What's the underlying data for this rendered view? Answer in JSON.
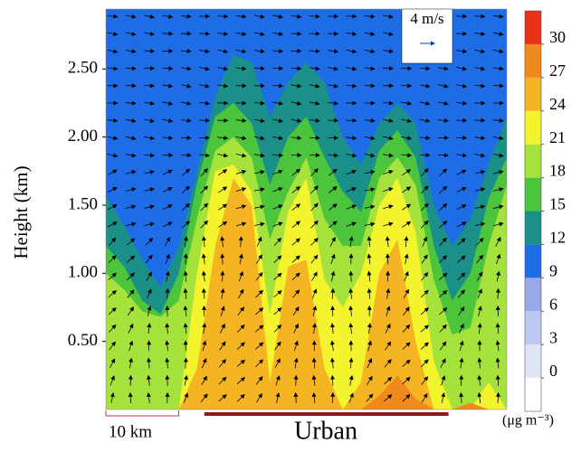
{
  "chart_data": {
    "type": "contour",
    "ylabel": "Height (km)",
    "xlim": [
      0,
      55
    ],
    "ylim": [
      0,
      2.94
    ],
    "yticks": [
      {
        "value": 0.5,
        "label": "0.50"
      },
      {
        "value": 1.0,
        "label": "1.00"
      },
      {
        "value": 1.5,
        "label": "1.50"
      },
      {
        "value": 2.0,
        "label": "2.00"
      },
      {
        "value": 2.5,
        "label": "2.50"
      }
    ],
    "background_color": "#1f6de6",
    "x": [
      0,
      2.5,
      5,
      7.5,
      10,
      12.5,
      15,
      17.5,
      20,
      22.5,
      25,
      27.5,
      30,
      32.5,
      35,
      37.5,
      40,
      42.5,
      45,
      47.5,
      50,
      52.5,
      55
    ],
    "series": [
      {
        "color": "#1a9088",
        "values": [
          1.57,
          1.35,
          1.1,
          0.9,
          1.2,
          1.75,
          2.3,
          2.6,
          2.55,
          2.15,
          2.4,
          2.55,
          2.4,
          2.0,
          1.8,
          2.1,
          2.25,
          2.1,
          1.5,
          1.2,
          1.4,
          1.8,
          2.15
        ]
      },
      {
        "color": "#4cc43c",
        "values": [
          1.2,
          1.05,
          0.8,
          0.7,
          1.0,
          1.66,
          2.15,
          2.25,
          2.1,
          1.65,
          2.0,
          2.15,
          1.85,
          1.6,
          1.45,
          1.9,
          2.05,
          1.85,
          1.2,
          0.8,
          1.0,
          1.55,
          1.85
        ]
      },
      {
        "color": "#a6e23c",
        "values": [
          1.0,
          0.88,
          0.72,
          0.68,
          0.8,
          1.4,
          1.9,
          2.0,
          1.85,
          1.25,
          1.6,
          1.85,
          1.4,
          1.2,
          1.2,
          1.7,
          1.85,
          1.65,
          0.95,
          0.55,
          0.6,
          1.2,
          1.65
        ]
      },
      {
        "color": "#f4f42e",
        "values": [
          0,
          0,
          0,
          0,
          0,
          1.0,
          1.75,
          1.8,
          1.6,
          0.7,
          1.45,
          1.7,
          0.95,
          0.75,
          1.0,
          1.5,
          1.7,
          1.3,
          0.35,
          0,
          0,
          0.2,
          0
        ]
      },
      {
        "color": "#f5b522",
        "values": [
          0,
          0,
          0,
          0,
          0,
          0.3,
          1.2,
          1.7,
          1.5,
          0.2,
          1.05,
          1.1,
          0.3,
          0,
          0.2,
          1.0,
          1.25,
          0.5,
          0,
          0,
          0,
          0,
          0
        ]
      },
      {
        "color": "#f08a1c",
        "values": [
          0,
          0,
          0,
          0,
          0,
          0,
          0,
          0,
          0,
          0,
          0,
          0,
          0,
          0,
          0,
          0.1,
          0.25,
          0.08,
          0,
          0,
          0.05,
          0,
          0
        ]
      }
    ],
    "colorbar": {
      "lim": [
        -3,
        33
      ],
      "ticks": [
        0,
        3,
        6,
        9,
        12,
        15,
        18,
        21,
        24,
        27,
        30
      ],
      "colors": [
        "#ffffff",
        "#dfe4f7",
        "#bcc8f0",
        "#98a8e8",
        "#1f6de6",
        "#1a9088",
        "#4cc43c",
        "#a6e23c",
        "#f4f42e",
        "#f5b522",
        "#f08a1c",
        "#e8321c"
      ],
      "unit": "(μg m⁻³)"
    },
    "wind_key": {
      "label": "4 m/s"
    },
    "scalebar": {
      "label": "10 km",
      "length": 10
    },
    "urban": {
      "label": "Urban",
      "range": [
        13.5,
        47
      ]
    }
  }
}
